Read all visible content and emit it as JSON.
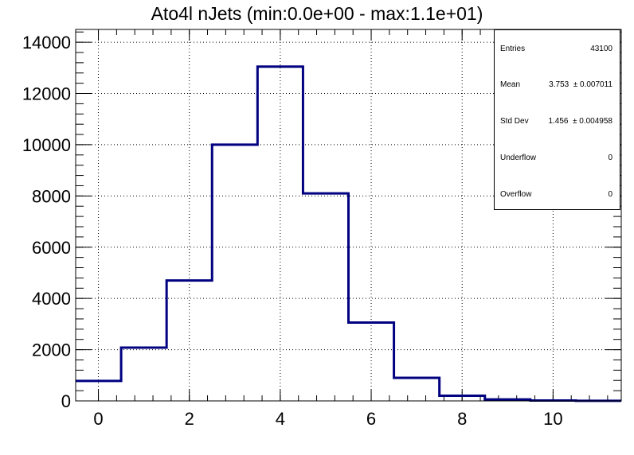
{
  "chart_data": {
    "type": "histogram",
    "title": "Ato4l nJets (min:0.0e+00 - max:1.1e+01)",
    "xlabel": "",
    "ylabel": "",
    "xlim": [
      -0.5,
      11.5
    ],
    "ylim": [
      0,
      14500
    ],
    "grid": true,
    "line_color": "#000080",
    "x_ticks": [
      0,
      2,
      4,
      6,
      8,
      10
    ],
    "y_ticks": [
      0,
      2000,
      4000,
      6000,
      8000,
      10000,
      12000,
      14000
    ],
    "bin_edges": [
      -0.5,
      0.5,
      1.5,
      2.5,
      3.5,
      4.5,
      5.5,
      6.5,
      7.5,
      8.5,
      9.5,
      10.5,
      11.5
    ],
    "values": [
      780,
      2080,
      4700,
      10000,
      13050,
      8100,
      3060,
      900,
      200,
      60,
      15,
      5
    ]
  },
  "stats_box": {
    "rows": [
      {
        "name": "Entries",
        "value": "43100"
      },
      {
        "name": "Mean",
        "value": "3.753  ± 0.007011"
      },
      {
        "name": "Std Dev",
        "value": "1.456  ± 0.004958"
      },
      {
        "name": "Underflow",
        "value": "0"
      },
      {
        "name": "Overflow",
        "value": "0"
      }
    ]
  }
}
